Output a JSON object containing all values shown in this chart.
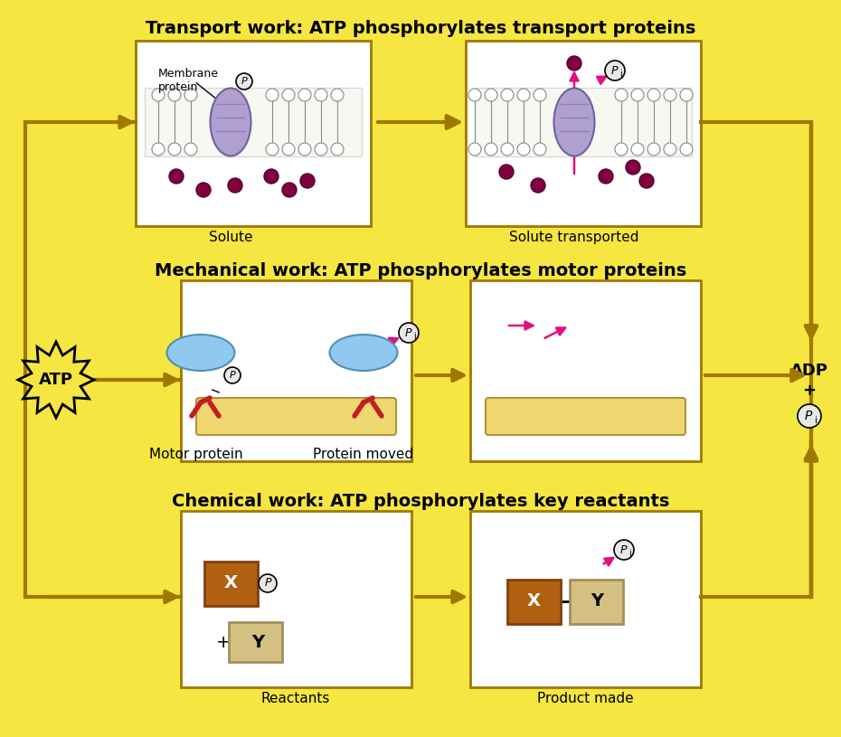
{
  "bg_color": "#F5E642",
  "arrow_color": "#A07800",
  "arrow_dark": "#8B6900",
  "title_transport": "Transport work: ATP phosphorylates transport proteins",
  "title_mechanical": "Mechanical work: ATP phosphorylates motor proteins",
  "title_chemical": "Chemical work: ATP phosphorylates key reactants",
  "label_membrane": "Membrane\nprotein",
  "label_solute": "Solute",
  "label_solute_transported": "Solute transported",
  "label_motor_protein": "Motor protein",
  "label_protein_moved": "Protein moved",
  "label_reactants": "Reactants",
  "label_product_made": "Product made",
  "label_atp": "ATP",
  "label_adp": "ADP\n+\n",
  "membrane_color": "#C8C8E8",
  "protein_color": "#B0A0D0",
  "solute_color": "#800040",
  "motor_blue": "#90C8F0",
  "motor_red": "#C02020",
  "tube_color": "#F0D870",
  "x_color": "#B06010",
  "y_color": "#D4C080",
  "pink_arrow": "#E01080",
  "pi_circle_color": "#E8E8E8"
}
